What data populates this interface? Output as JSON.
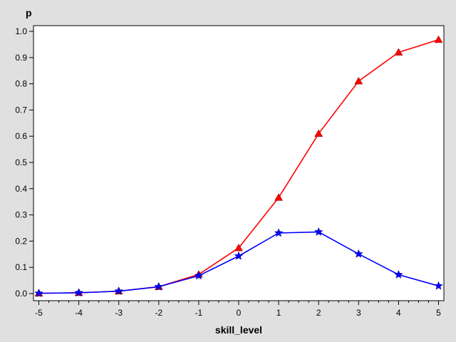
{
  "chart_data": {
    "type": "line",
    "xlabel": "skill_level",
    "ylabel": "p",
    "xlim": [
      -5,
      5
    ],
    "ylim": [
      0,
      1
    ],
    "x_ticks": [
      -5,
      -4,
      -3,
      -2,
      -1,
      0,
      1,
      2,
      3,
      4,
      5
    ],
    "y_ticks": [
      "0.0",
      "0.1",
      "0.2",
      "0.3",
      "0.4",
      "0.5",
      "0.6",
      "0.7",
      "0.8",
      "0.9",
      "1.0"
    ],
    "x_minor_step": 0.25,
    "grid": false,
    "legend": "none",
    "x": [
      -5,
      -4,
      -3,
      -2,
      -1,
      0,
      1,
      2,
      3,
      4,
      5
    ],
    "series": [
      {
        "color": "#ff0000",
        "marker": "triangle",
        "values": [
          0.001,
          0.003,
          0.009,
          0.026,
          0.073,
          0.174,
          0.366,
          0.61,
          0.81,
          0.92,
          0.968
        ]
      },
      {
        "color": "#0000ff",
        "marker": "star",
        "values": [
          0.001,
          0.003,
          0.009,
          0.026,
          0.068,
          0.143,
          0.231,
          0.235,
          0.151,
          0.072,
          0.029
        ]
      }
    ]
  }
}
